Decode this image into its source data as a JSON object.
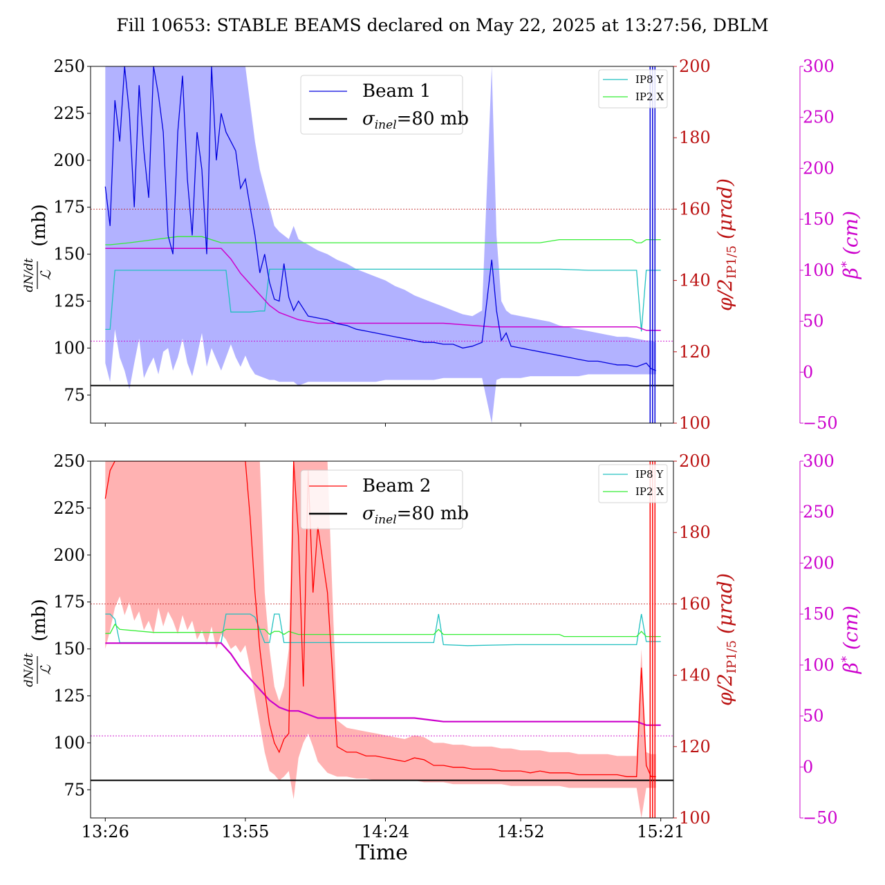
{
  "title": "Fill 10653: STABLE BEAMS declared on May 22, 2025 at 13:27:56, DBLM",
  "xlabel": "Time",
  "colors": {
    "beam1": "#0000dd",
    "beam1_band": "#aaaaff",
    "beam2": "#ff0000",
    "beam2_band": "#ffaaaa",
    "ip8y": "#20c0c0",
    "ip2x": "#33ee33",
    "beta": "#cc00cc",
    "crossing_axis": "#bb1111",
    "sigma": "#000000"
  },
  "chart_data": [
    {
      "type": "line",
      "panel": "top",
      "ylabel": "dN/dt / ℒ (mb)",
      "ylabel_parts": {
        "num": "dN/dt",
        "den": "ℒ",
        "unit": "(mb)"
      },
      "y2label": "φ/2IP1/5 (μrad)",
      "y2label_parts": {
        "phi": "φ/2",
        "sub": "IP1/5",
        "unit": "(μrad)"
      },
      "y3label": "β* (cm)",
      "y3label_parts": {
        "beta": "β",
        "sup": "*",
        "unit": "(cm)"
      },
      "xlim": [
        0,
        115
      ],
      "x_ticks": [
        0,
        29,
        58,
        86,
        115
      ],
      "x_tick_labels": [
        "13:26",
        "13:55",
        "14:24",
        "14:52",
        "15:21"
      ],
      "ylim": [
        60,
        250
      ],
      "y_ticks": [
        75,
        100,
        125,
        150,
        175,
        200,
        225,
        250
      ],
      "y2lim": [
        100,
        200
      ],
      "y2_ticks": [
        100,
        120,
        140,
        160,
        180,
        200
      ],
      "y3lim": [
        -50,
        300
      ],
      "y3_ticks": [
        -50,
        0,
        50,
        100,
        150,
        200,
        250,
        300
      ],
      "grid": false,
      "legend_main": {
        "position": "upper-center",
        "entries": [
          "Beam 1",
          "σinel=80 mb"
        ],
        "beam_label": "Beam 1",
        "sigma_sym": "σ",
        "sigma_sub": "inel",
        "sigma_rest": "=80 mb"
      },
      "legend_small": {
        "position": "top-right",
        "entries": [
          "IP8 Y",
          "IP2 X"
        ]
      },
      "sigma_inel": 80,
      "hlines_y2": [
        160,
        123
      ],
      "beam": {
        "name": "Beam 1",
        "x": [
          0,
          1,
          2,
          3,
          4,
          5,
          6,
          7,
          8,
          9,
          10,
          11,
          12,
          13,
          14,
          15,
          16,
          17,
          18,
          19,
          20,
          21,
          22,
          23,
          24,
          25,
          26,
          27,
          28,
          29,
          30,
          31,
          32,
          33,
          34,
          35,
          36,
          37,
          38,
          39,
          40,
          42,
          44,
          46,
          48,
          50,
          52,
          54,
          56,
          58,
          60,
          62,
          64,
          66,
          68,
          70,
          72,
          74,
          76,
          78,
          80,
          81,
          82,
          83,
          84,
          86,
          88,
          90,
          92,
          94,
          96,
          98,
          100,
          102,
          104,
          106,
          108,
          110,
          112,
          113,
          114
        ],
        "y": [
          186,
          165,
          232,
          210,
          250,
          225,
          175,
          240,
          205,
          180,
          250,
          235,
          215,
          160,
          150,
          215,
          245,
          190,
          160,
          215,
          195,
          150,
          250,
          200,
          225,
          215,
          210,
          205,
          185,
          190,
          175,
          160,
          140,
          150,
          135,
          126,
          125,
          145,
          127,
          120,
          125,
          117,
          116,
          115,
          113,
          112,
          110,
          109,
          108,
          107,
          106,
          105,
          104,
          103,
          103,
          102,
          102,
          100,
          101,
          103,
          147,
          120,
          104,
          108,
          101,
          100,
          99,
          98,
          97,
          96,
          95,
          94,
          93,
          93,
          92,
          91,
          91,
          90,
          92,
          89,
          88
        ]
      },
      "band": {
        "upper": [
          250,
          250,
          250,
          250,
          250,
          250,
          250,
          250,
          250,
          250,
          250,
          250,
          250,
          250,
          250,
          250,
          250,
          250,
          250,
          250,
          250,
          250,
          250,
          250,
          250,
          250,
          250,
          250,
          250,
          250,
          230,
          210,
          195,
          185,
          175,
          165,
          162,
          160,
          158,
          165,
          158,
          155,
          152,
          150,
          147,
          145,
          142,
          140,
          138,
          136,
          133,
          131,
          128,
          126,
          124,
          122,
          120,
          118,
          117,
          120,
          250,
          160,
          125,
          120,
          118,
          117,
          116,
          115,
          114,
          112,
          111,
          110,
          109,
          108,
          107,
          106,
          106,
          105,
          104,
          104,
          103
        ],
        "lower": [
          92,
          82,
          110,
          95,
          88,
          78,
          92,
          105,
          84,
          90,
          95,
          86,
          98,
          100,
          88,
          95,
          105,
          92,
          85,
          96,
          108,
          90,
          100,
          94,
          88,
          95,
          102,
          95,
          90,
          96,
          90,
          86,
          85,
          84,
          83,
          83,
          82,
          82,
          82,
          82,
          80,
          82,
          82,
          82,
          82,
          82,
          82,
          82,
          82,
          83,
          83,
          83,
          83,
          83,
          83,
          84,
          84,
          84,
          84,
          84,
          60,
          83,
          84,
          84,
          84,
          84,
          85,
          85,
          85,
          85,
          85,
          85,
          86,
          86,
          86,
          86,
          86,
          86,
          86,
          86,
          86
        ]
      },
      "crossing_ip8y_beta_cm": {
        "x": [
          0,
          1,
          2,
          23,
          24,
          25,
          26,
          30,
          32,
          33,
          34,
          36,
          38,
          40,
          44,
          60,
          62,
          70,
          80,
          94,
          100,
          110,
          111,
          112,
          115
        ],
        "y": [
          42,
          42,
          100,
          100,
          100,
          100,
          59,
          59,
          60,
          60,
          101,
          101,
          101,
          101,
          101,
          101,
          101,
          101,
          101,
          101,
          100,
          100,
          40,
          100,
          100
        ]
      },
      "crossing_ip2x_beta_cm": {
        "x": [
          0,
          1,
          5,
          10,
          15,
          20,
          24,
          25,
          30,
          35,
          40,
          44,
          46,
          60,
          70,
          80,
          90,
          94,
          100,
          105,
          109,
          110,
          111,
          112,
          115
        ],
        "y": [
          125,
          125,
          127,
          130,
          133,
          133,
          127,
          127,
          127,
          127,
          127,
          127,
          127,
          127,
          127,
          127,
          127,
          130,
          130,
          130,
          130,
          127,
          127,
          130,
          130
        ]
      },
      "crossing_angle_urad": {
        "x": [
          0,
          10,
          20,
          24,
          26,
          28,
          30,
          32,
          34,
          36,
          38,
          40,
          44,
          50,
          60,
          62,
          64,
          70,
          80,
          90,
          100,
          104,
          106,
          108,
          110,
          112,
          115
        ],
        "y": [
          149,
          149,
          149,
          149,
          146,
          142,
          139,
          136,
          133,
          131,
          130,
          129,
          128,
          128,
          128,
          128,
          128,
          128,
          127,
          127,
          127,
          127,
          127,
          127,
          127,
          126,
          126
        ]
      }
    },
    {
      "type": "line",
      "panel": "bottom",
      "ylabel": "dN/dt / ℒ (mb)",
      "ylabel_parts": {
        "num": "dN/dt",
        "den": "ℒ",
        "unit": "(mb)"
      },
      "y2label": "φ/2IP1/5 (μrad)",
      "y2label_parts": {
        "phi": "φ/2",
        "sub": "IP1/5",
        "unit": "(μrad)"
      },
      "y3label": "β* (cm)",
      "y3label_parts": {
        "beta": "β",
        "sup": "*",
        "unit": "(cm)"
      },
      "xlim": [
        0,
        115
      ],
      "x_ticks": [
        0,
        29,
        58,
        86,
        115
      ],
      "x_tick_labels": [
        "13:26",
        "13:55",
        "14:24",
        "14:52",
        "15:21"
      ],
      "ylim": [
        60,
        250
      ],
      "y_ticks": [
        75,
        100,
        125,
        150,
        175,
        200,
        225,
        250
      ],
      "y2lim": [
        100,
        200
      ],
      "y2_ticks": [
        100,
        120,
        140,
        160,
        180,
        200
      ],
      "y3lim": [
        -50,
        300
      ],
      "y3_ticks": [
        -50,
        0,
        50,
        100,
        150,
        200,
        250,
        300
      ],
      "grid": false,
      "legend_main": {
        "position": "upper-center",
        "entries": [
          "Beam 2",
          "σinel=80 mb"
        ],
        "beam_label": "Beam 2",
        "sigma_sym": "σ",
        "sigma_sub": "inel",
        "sigma_rest": "=80 mb"
      },
      "legend_small": {
        "position": "top-right",
        "entries": [
          "IP8 Y",
          "IP2 X"
        ]
      },
      "sigma_inel": 80,
      "hlines_y2": [
        160,
        123
      ],
      "beam": {
        "name": "Beam 2",
        "x": [
          0,
          1,
          2,
          3,
          4,
          5,
          6,
          7,
          8,
          9,
          10,
          11,
          12,
          13,
          14,
          15,
          16,
          17,
          18,
          19,
          20,
          21,
          22,
          23,
          24,
          25,
          26,
          27,
          28,
          29,
          30,
          31,
          32,
          33,
          34,
          35,
          36,
          37,
          38,
          39,
          40,
          41,
          42,
          43,
          44,
          46,
          48,
          50,
          52,
          54,
          56,
          58,
          60,
          62,
          64,
          66,
          68,
          70,
          72,
          74,
          76,
          78,
          80,
          82,
          84,
          86,
          88,
          90,
          92,
          94,
          96,
          98,
          100,
          102,
          104,
          106,
          108,
          110,
          111,
          112,
          113,
          114
        ],
        "y": [
          230,
          245,
          250,
          250,
          250,
          250,
          250,
          250,
          250,
          250,
          250,
          250,
          250,
          250,
          250,
          250,
          250,
          250,
          250,
          250,
          250,
          250,
          250,
          250,
          250,
          250,
          250,
          250,
          250,
          250,
          220,
          180,
          150,
          128,
          110,
          100,
          95,
          102,
          105,
          250,
          210,
          130,
          245,
          180,
          215,
          180,
          98,
          95,
          95,
          93,
          93,
          92,
          91,
          90,
          92,
          91,
          88,
          88,
          87,
          87,
          86,
          86,
          86,
          85,
          85,
          85,
          84,
          85,
          84,
          84,
          84,
          83,
          83,
          83,
          83,
          83,
          82,
          82,
          140,
          88,
          82,
          82
        ]
      },
      "band": {
        "upper": [
          250,
          250,
          250,
          250,
          250,
          250,
          250,
          250,
          250,
          250,
          250,
          250,
          250,
          250,
          250,
          250,
          250,
          250,
          250,
          250,
          250,
          250,
          250,
          250,
          250,
          250,
          250,
          250,
          250,
          250,
          250,
          250,
          250,
          180,
          150,
          130,
          122,
          130,
          150,
          250,
          250,
          250,
          250,
          250,
          250,
          250,
          112,
          108,
          107,
          106,
          105,
          104,
          103,
          102,
          104,
          103,
          100,
          100,
          99,
          99,
          98,
          98,
          98,
          97,
          97,
          96,
          96,
          96,
          95,
          95,
          95,
          94,
          94,
          94,
          94,
          93,
          93,
          93,
          150,
          95,
          94,
          94
        ]
      },
      "band_lower": [
        150,
        160,
        172,
        178,
        168,
        175,
        165,
        170,
        160,
        165,
        158,
        172,
        162,
        170,
        165,
        158,
        168,
        160,
        165,
        155,
        160,
        152,
        162,
        150,
        158,
        155,
        150,
        152,
        148,
        152,
        140,
        125,
        110,
        95,
        85,
        83,
        80,
        82,
        85,
        70,
        92,
        100,
        105,
        98,
        90,
        84,
        82,
        82,
        81,
        81,
        80,
        80,
        80,
        80,
        80,
        79,
        79,
        79,
        78,
        78,
        78,
        78,
        78,
        78,
        77,
        77,
        77,
        77,
        77,
        77,
        76,
        76,
        76,
        76,
        76,
        76,
        76,
        76,
        60,
        76,
        76,
        76
      ],
      "crossing_ip8y_beta_cm": {
        "x": [
          0,
          1,
          2,
          3,
          20,
          24,
          25,
          30,
          31,
          33,
          34,
          35,
          36,
          37,
          38,
          39,
          40,
          45,
          60,
          68,
          69,
          70,
          75,
          85,
          95,
          100,
          110,
          111,
          112,
          115
        ],
        "y": [
          150,
          150,
          145,
          122,
          122,
          122,
          150,
          150,
          147,
          122,
          122,
          150,
          150,
          122,
          122,
          122,
          122,
          122,
          122,
          122,
          150,
          120,
          119,
          120,
          120,
          120,
          120,
          150,
          123,
          123
        ]
      },
      "crossing_ip2x_beta_cm": {
        "x": [
          0,
          1,
          2,
          3,
          10,
          20,
          24,
          25,
          30,
          33,
          34,
          35,
          36,
          37,
          38,
          40,
          60,
          68,
          69,
          70,
          90,
          94,
          95,
          100,
          110,
          111,
          112,
          115
        ],
        "y": [
          131,
          131,
          140,
          135,
          132,
          132,
          132,
          135,
          135,
          135,
          130,
          133,
          133,
          130,
          133,
          130,
          130,
          130,
          135,
          130,
          130,
          130,
          128,
          128,
          128,
          133,
          128,
          128
        ]
      },
      "crossing_angle_urad": {
        "x": [
          0,
          10,
          20,
          24,
          26,
          28,
          30,
          32,
          34,
          36,
          38,
          40,
          42,
          44,
          46,
          60,
          62,
          64,
          70,
          80,
          90,
          100,
          104,
          106,
          108,
          110,
          112,
          115
        ],
        "y": [
          149,
          149,
          149,
          149,
          146,
          142,
          139,
          136,
          133,
          131,
          130,
          130,
          129,
          128,
          128,
          128,
          128,
          128,
          127,
          127,
          127,
          127,
          127,
          127,
          127,
          127,
          126,
          126
        ]
      }
    }
  ]
}
